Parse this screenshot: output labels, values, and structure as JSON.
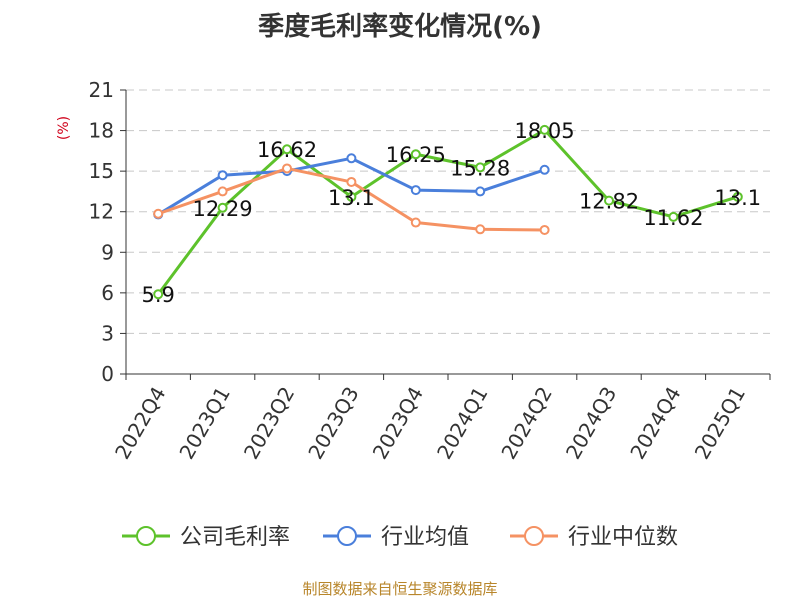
{
  "source": "制图数据来自恒生聚源数据库",
  "chart_data": {
    "type": "line",
    "title": "季度毛利率变化情况(%)",
    "ylabel": "(%)",
    "ylim": [
      0,
      21
    ],
    "yticks": [
      0,
      3,
      6,
      9,
      12,
      15,
      18,
      21
    ],
    "grid": true,
    "legend_position": "bottom",
    "categories": [
      "2022Q4",
      "2023Q1",
      "2023Q2",
      "2023Q3",
      "2023Q4",
      "2024Q1",
      "2024Q2",
      "2024Q3",
      "2024Q4",
      "2025Q1"
    ],
    "series": [
      {
        "name": "公司毛利率",
        "color": "#5dc22b",
        "values": [
          5.9,
          12.29,
          16.62,
          13.1,
          16.25,
          15.28,
          18.05,
          12.82,
          11.62,
          13.1
        ],
        "labels": [
          "5.9",
          "12.29",
          "16.62",
          "13.1",
          "16.25",
          "15.28",
          "18.05",
          "12.82",
          "11.62",
          "13.1"
        ]
      },
      {
        "name": "行业均值",
        "color": "#4a7fdb",
        "values": [
          11.8,
          14.7,
          15.0,
          15.95,
          13.6,
          13.5,
          15.1,
          null,
          null,
          null
        ]
      },
      {
        "name": "行业中位数",
        "color": "#f59263",
        "values": [
          11.85,
          13.5,
          15.2,
          14.2,
          11.2,
          10.7,
          10.65,
          null,
          null,
          null
        ]
      }
    ]
  }
}
